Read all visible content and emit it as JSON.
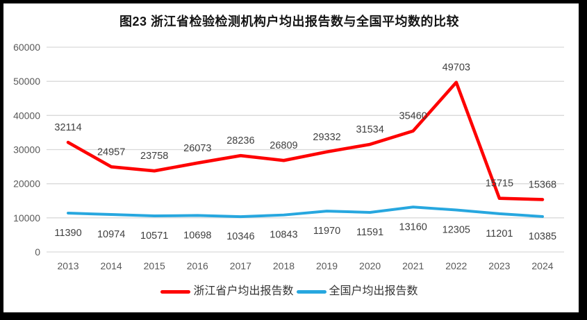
{
  "title": "图23  浙江省检验检测机构户均出报告数与全国平均数的比较",
  "colors": {
    "zhejiang_red": "#FE0000",
    "national_blue": "#27A7DF",
    "gridline": "#D9D9D9",
    "axis_text": "#595959",
    "data_label_text": "#404040",
    "frame": "#000000"
  },
  "chart_data": {
    "type": "line",
    "title": "图23  浙江省检验检测机构户均出报告数与全国平均数的比较",
    "categories": [
      "2013",
      "2014",
      "2015",
      "2016",
      "2017",
      "2018",
      "2019",
      "2020",
      "2021",
      "2022",
      "2023",
      "2024"
    ],
    "series": [
      {
        "name": "浙江省户均出报告数",
        "color_key": "zhejiang_red",
        "label_position": "above",
        "values": [
          32114,
          24957,
          23758,
          26073,
          28236,
          26809,
          29332,
          31534,
          35460,
          49703,
          15715,
          15368
        ]
      },
      {
        "name": "全国户均出报告数",
        "color_key": "national_blue",
        "label_position": "below",
        "values": [
          11390,
          10974,
          10571,
          10698,
          10346,
          10843,
          11970,
          11591,
          13160,
          12305,
          11201,
          10385
        ]
      }
    ],
    "xlabel": "",
    "ylabel": "",
    "ylim": [
      0,
      60000
    ],
    "ytick_step": 10000,
    "yticks": [
      "0",
      "10000",
      "20000",
      "30000",
      "40000",
      "50000",
      "60000"
    ],
    "grid": true,
    "data_labels": true,
    "legend_position": "bottom"
  }
}
